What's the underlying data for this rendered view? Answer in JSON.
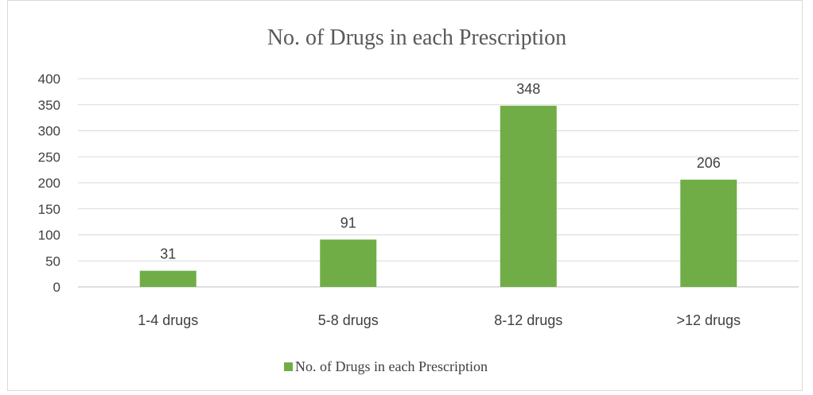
{
  "chart_data": {
    "type": "bar",
    "title": "No. of Drugs in each Prescription",
    "categories": [
      "1-4 drugs",
      "5-8 drugs",
      "8-12 drugs",
      ">12 drugs"
    ],
    "series": [
      {
        "name": "No. of Drugs in each Prescription",
        "values": [
          31,
          91,
          348,
          206
        ],
        "color": "#70ad47"
      }
    ],
    "ylim": [
      0,
      400
    ],
    "yticks": [
      0,
      50,
      100,
      150,
      200,
      250,
      300,
      350,
      400
    ],
    "grid": true,
    "data_labels": true,
    "legend_position": "bottom"
  }
}
